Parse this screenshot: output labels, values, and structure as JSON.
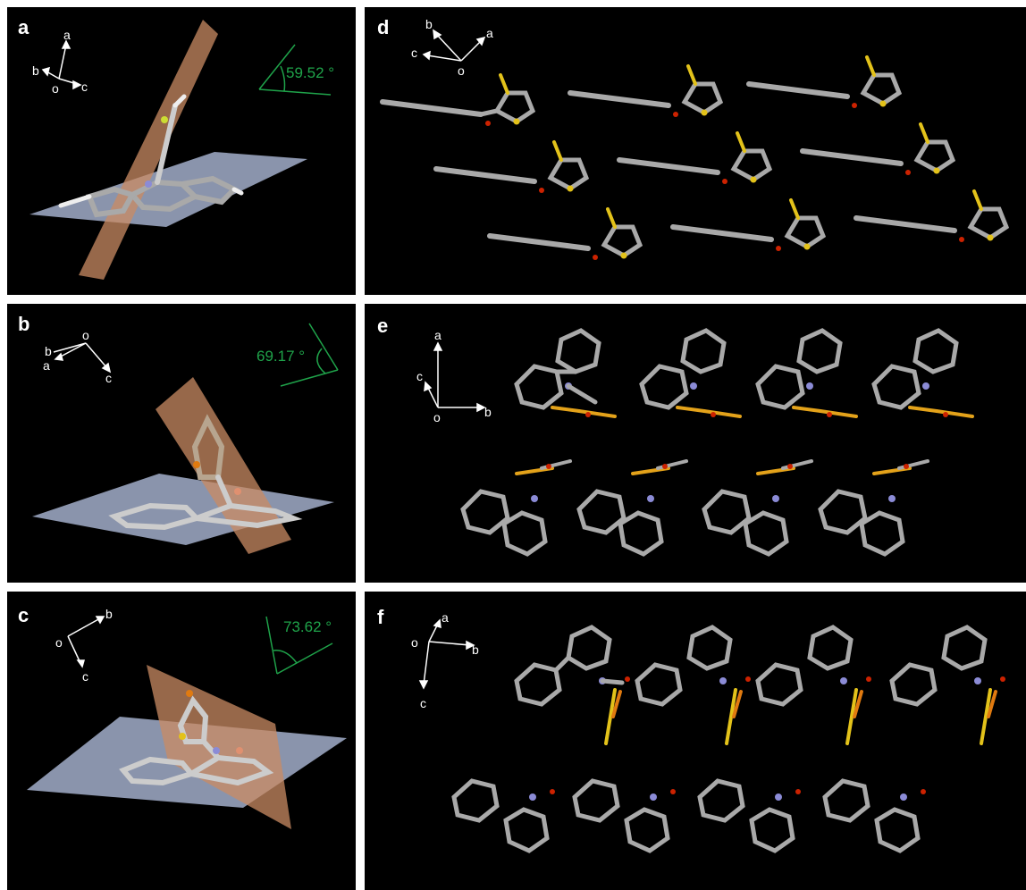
{
  "colors": {
    "background": "#000000",
    "divider": "#ffffff",
    "axis": "#ffffff",
    "angle": "#1fa34a",
    "plane_blue": "#b8c6e6",
    "plane_orange": "#c98b63",
    "carbon": "#a9a9a9",
    "hydrogen": "#eeeeee",
    "nitrogen": "#8b8bd6",
    "oxygen": "#cc2200",
    "sulfur": "#e3c21a",
    "halogen_f": "#ccdd33",
    "halogen_br": "#e07a10"
  },
  "panels": [
    {
      "label": "a",
      "angle": "59.52 °",
      "axes": [
        "a",
        "b",
        "o",
        "c"
      ]
    },
    {
      "label": "b",
      "angle": "69.17 °",
      "axes": [
        "o",
        "b",
        "a",
        "c"
      ]
    },
    {
      "label": "c",
      "angle": "73.62 °",
      "axes": [
        "o",
        "b",
        "c"
      ]
    },
    {
      "label": "d",
      "axes": [
        "b",
        "a",
        "c",
        "o"
      ]
    },
    {
      "label": "e",
      "axes": [
        "a",
        "c",
        "o",
        "b"
      ]
    },
    {
      "label": "f",
      "axes": [
        "a",
        "o",
        "b",
        "c"
      ]
    }
  ]
}
